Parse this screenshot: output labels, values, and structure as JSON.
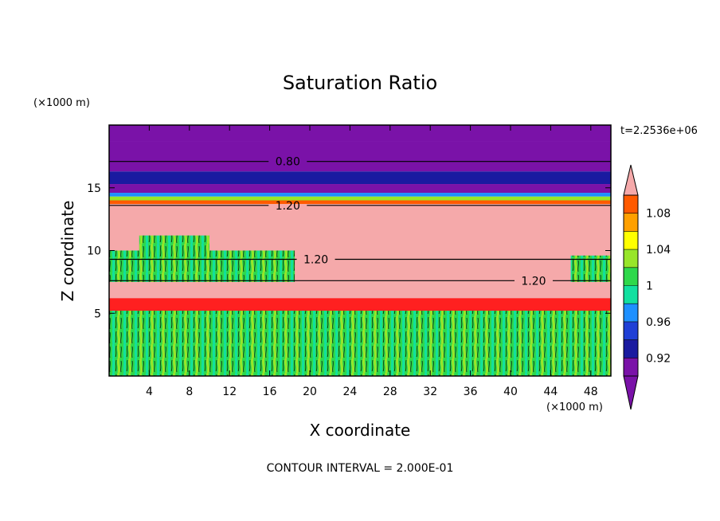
{
  "chart_data": {
    "type": "heatmap",
    "title": "Saturation Ratio",
    "xlabel": "X coordinate",
    "ylabel": "Z coordinate",
    "x_unit": "(×1000 m)",
    "y_unit": "(×1000 m)",
    "xlim": [
      0,
      50
    ],
    "ylim": [
      0,
      20
    ],
    "x_ticks": [
      4,
      8,
      12,
      16,
      20,
      24,
      28,
      32,
      36,
      40,
      44,
      48
    ],
    "y_ticks": [
      5,
      10,
      15
    ],
    "time_label": "t=2.2536e+06",
    "footer": "CONTOUR INTERVAL = 2.000E-01",
    "colorbar": {
      "levels": [
        0.9,
        0.92,
        0.94,
        0.96,
        0.98,
        1.0,
        1.02,
        1.04,
        1.06,
        1.08,
        1.1
      ],
      "tick_labels": [
        "0.92",
        "0.96",
        "1",
        "1.04",
        "1.08"
      ],
      "tick_values": [
        0.92,
        0.96,
        1.0,
        1.04,
        1.08
      ],
      "colors": [
        "#7a12a8",
        "#1a1aa0",
        "#1f3fd6",
        "#1e90ff",
        "#12e0a0",
        "#2ed84b",
        "#98e62a",
        "#ffff00",
        "#ffa000",
        "#ff5a00",
        "#ff2020"
      ],
      "over_color": "#f5a9aa",
      "under_color": "#7a12a8"
    },
    "layers": [
      {
        "z_bottom": 18.7,
        "z_top": 20.0,
        "value": 0.8,
        "fill": "#7a12a8"
      },
      {
        "z_bottom": 16.3,
        "z_top": 18.7,
        "value": 0.8,
        "fill": "#7a12a8"
      },
      {
        "z_bottom": 15.3,
        "z_top": 16.3,
        "value": 0.92,
        "fill": "#1a1aa0"
      },
      {
        "z_bottom": 14.6,
        "z_top": 15.3,
        "value": 0.88,
        "fill": "#7a12a8"
      },
      {
        "z_bottom": 14.3,
        "z_top": 14.6,
        "value": 0.96,
        "fill": "#1e90ff"
      },
      {
        "z_bottom": 14.0,
        "z_top": 14.3,
        "value": 1.02,
        "fill": "#98e62a"
      },
      {
        "z_bottom": 13.7,
        "z_top": 14.0,
        "value": 1.08,
        "fill": "#ff5a00"
      },
      {
        "z_bottom": 5.5,
        "z_top": 13.7,
        "value": 1.2,
        "fill": "#f5a9aa"
      },
      {
        "z_bottom": 4.0,
        "z_top": 6.2,
        "value": 1.09,
        "fill": "#ff2020"
      },
      {
        "z_bottom": 0.0,
        "z_top": 5.2,
        "value": 1.0,
        "fill": "#2ed84b"
      }
    ],
    "cloud_patches": [
      {
        "x_start": 0.0,
        "x_end": 18.5,
        "z_bottom": 7.5,
        "z_top": 10.0,
        "value": 1.0
      },
      {
        "x_start": 3.0,
        "x_end": 10.0,
        "z_bottom": 9.5,
        "z_top": 11.2,
        "value": 1.0
      },
      {
        "x_start": 46.0,
        "x_end": 50.0,
        "z_bottom": 7.5,
        "z_top": 9.6,
        "value": 1.0
      }
    ],
    "contour_lines": [
      {
        "value": 0.8,
        "z": 17.1,
        "label": "0.80",
        "label_x": 17.8
      },
      {
        "value": 1.2,
        "z": 13.6,
        "label": "1.20",
        "label_x": 17.8
      },
      {
        "value": 1.2,
        "z": 9.3,
        "label": "1.20",
        "label_x": 20.6
      },
      {
        "value": 1.2,
        "z": 7.6,
        "label": "1.20",
        "label_x": 42.3
      }
    ]
  }
}
